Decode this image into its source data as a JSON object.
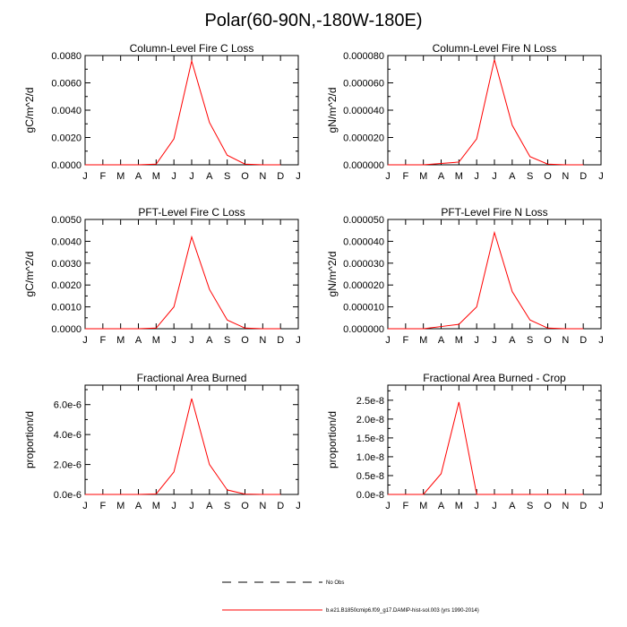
{
  "page": {
    "title": "Polar(60-90N,-180W-180E)"
  },
  "months": [
    "J",
    "F",
    "M",
    "A",
    "M",
    "J",
    "J",
    "A",
    "S",
    "O",
    "N",
    "D",
    "J"
  ],
  "chart_data": [
    {
      "type": "line",
      "title": "Column-Level Fire C Loss",
      "ylabel": "gC/m^2/d",
      "ylim": [
        0,
        0.008
      ],
      "yticks": [
        "0.0000",
        "0.0020",
        "0.0040",
        "0.0060",
        "0.0080"
      ],
      "ytick_values": [
        0,
        0.002,
        0.004,
        0.006,
        0.008
      ],
      "x": [
        0,
        1,
        2,
        3,
        4,
        5,
        6,
        7,
        8,
        9,
        10,
        11
      ],
      "series": [
        {
          "color": "#ff0000",
          "values": [
            0,
            0,
            0,
            0,
            5e-05,
            0.0019,
            0.0076,
            0.0031,
            0.0007,
            5e-05,
            0,
            0
          ]
        }
      ]
    },
    {
      "type": "line",
      "title": "Column-Level Fire N Loss",
      "ylabel": "gN/m^2/d",
      "ylim": [
        0,
        8e-05
      ],
      "yticks": [
        "0.000000",
        "0.000020",
        "0.000040",
        "0.000060",
        "0.000080"
      ],
      "ytick_values": [
        0,
        2e-05,
        4e-05,
        6e-05,
        8e-05
      ],
      "x": [
        0,
        1,
        2,
        3,
        4,
        5,
        6,
        7,
        8,
        9,
        10,
        11
      ],
      "series": [
        {
          "color": "#ff0000",
          "values": [
            0,
            0,
            0,
            1e-06,
            2e-06,
            1.9e-05,
            7.7e-05,
            2.9e-05,
            6e-06,
            5e-07,
            0,
            0
          ]
        }
      ]
    },
    {
      "type": "line",
      "title": "PFT-Level Fire C Loss",
      "ylabel": "gC/m^2/d",
      "ylim": [
        0,
        0.005
      ],
      "yticks": [
        "0.0000",
        "0.0010",
        "0.0020",
        "0.0030",
        "0.0040",
        "0.0050"
      ],
      "ytick_values": [
        0,
        0.001,
        0.002,
        0.003,
        0.004,
        0.005
      ],
      "x": [
        0,
        1,
        2,
        3,
        4,
        5,
        6,
        7,
        8,
        9,
        10,
        11
      ],
      "series": [
        {
          "color": "#ff0000",
          "values": [
            0,
            0,
            0,
            0,
            3e-05,
            0.001,
            0.0042,
            0.0018,
            0.0004,
            3e-05,
            0,
            0
          ]
        }
      ]
    },
    {
      "type": "line",
      "title": "PFT-Level Fire N Loss",
      "ylabel": "gN/m^2/d",
      "ylim": [
        0,
        5e-05
      ],
      "yticks": [
        "0.000000",
        "0.000010",
        "0.000020",
        "0.000030",
        "0.000040",
        "0.000050"
      ],
      "ytick_values": [
        0,
        1e-05,
        2e-05,
        3e-05,
        4e-05,
        5e-05
      ],
      "x": [
        0,
        1,
        2,
        3,
        4,
        5,
        6,
        7,
        8,
        9,
        10,
        11
      ],
      "series": [
        {
          "color": "#ff0000",
          "values": [
            0,
            0,
            0,
            1e-06,
            2e-06,
            1e-05,
            4.4e-05,
            1.7e-05,
            4e-06,
            3e-07,
            0,
            0
          ]
        }
      ]
    },
    {
      "type": "line",
      "title": "Fractional Area Burned",
      "ylabel": "proportion/d",
      "ylim": [
        0,
        7.3e-06
      ],
      "yticks": [
        "0.0e-6",
        "2.0e-6",
        "4.0e-6",
        "6.0e-6"
      ],
      "ytick_values": [
        0,
        2e-06,
        4e-06,
        6e-06
      ],
      "x": [
        0,
        1,
        2,
        3,
        4,
        5,
        6,
        7,
        8,
        9,
        10,
        11
      ],
      "series": [
        {
          "color": "#ff0000",
          "values": [
            0,
            0,
            0,
            0,
            3e-08,
            1.5e-06,
            6.4e-06,
            2e-06,
            3e-07,
            2e-08,
            0,
            0
          ]
        }
      ]
    },
    {
      "type": "line",
      "title": "Fractional Area Burned - Crop",
      "ylabel": "proportion/d",
      "ylim": [
        0,
        2.9e-08
      ],
      "yticks": [
        "0.0e-8",
        "0.5e-8",
        "1.0e-8",
        "1.5e-8",
        "2.0e-8",
        "2.5e-8"
      ],
      "ytick_values": [
        0,
        5e-09,
        1e-08,
        1.5e-08,
        2e-08,
        2.5e-08
      ],
      "x": [
        0,
        1,
        2,
        3,
        4,
        5,
        6,
        7,
        8,
        9,
        10,
        11
      ],
      "series": [
        {
          "color": "#ff0000",
          "values": [
            0,
            0,
            0,
            5.5e-09,
            2.45e-08,
            0,
            0,
            0,
            0,
            0,
            0,
            0
          ]
        }
      ]
    }
  ],
  "legend": {
    "items": [
      {
        "label": "No Obs",
        "style": "dashed",
        "color": "#000000"
      },
      {
        "label": "b.e21.B1850cmip6.f09_g17.DAMIP-hist-sol.003 (yrs 1990-2014)",
        "style": "solid",
        "color": "#ff0000"
      }
    ]
  }
}
